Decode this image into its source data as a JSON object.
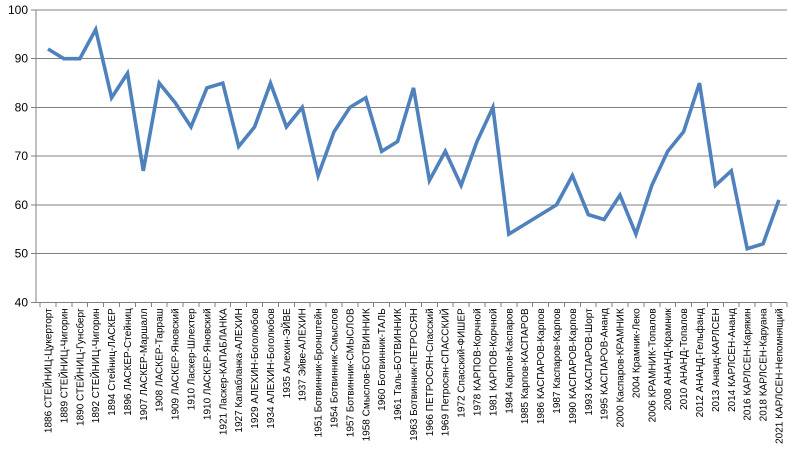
{
  "chart_data": {
    "type": "line",
    "title": "",
    "xlabel": "",
    "ylabel": "",
    "ylim": [
      40,
      100
    ],
    "yticks": [
      100,
      90,
      80,
      70,
      60,
      50,
      40
    ],
    "grid": true,
    "legend": false,
    "line_color": "#4F81BD",
    "grid_color": "#808080",
    "axis_color": "#808080",
    "background_color": "#FFFFFF",
    "categories": [
      "1886 СТЕЙНИЦ-Цукерторт",
      "1889 СТЕЙНИЦ-Чигорин",
      "1890 СТЕЙНИЦ-Гунсберг",
      "1892 СТЕЙНИЦ-Чигорин",
      "1894 Стейниц-ЛАСКЕР",
      "1896 ЛАСКЕР-Стейниц",
      "1907 ЛАСКЕР-Маршалл",
      "1908 ЛАСКЕР-Тарраш",
      "1909 ЛАСКЕР-Яновский",
      "1910 Ласкер-Шлехтер",
      "1910 ЛАСКЕР-Яновский",
      "1921 Ласкер-КАПАБЛАНКА",
      "1927 Капабланка-АЛЕХИН",
      "1929 АЛЕХИН-Боголюбов",
      "1934 АЛЕХИН-Боголюбов",
      "1935 Алехин-ЭЙВЕ",
      "1937 Эйве-АЛЕХИН",
      "1951 Ботвинник-Бронштейн",
      "1954 Ботвинник-Смыслов",
      "1957 Ботвинник-СМЫСЛОВ",
      "1958 Смыслов-БОТВИННИК",
      "1960 Ботвинник-ТАЛЬ",
      "1961 Таль-БОТВИННИК",
      "1963 Ботвинник-ПЕТРОСЯН",
      "1966 ПЕТРОСЯН-Спасский",
      "1969 Петросян-СПАССКИЙ",
      "1972 Спасский-ФИШЕР",
      "1978 КАРПОВ-Корчной",
      "1981 КАРПОВ-Корчной",
      "1984 Карпов-Каспаров",
      "1985 Карпов-КАСПАРОВ",
      "1986 КАСПАРОВ-Карпов",
      "1987 Каспаров-Карпов",
      "1990 КАСПАРОВ-Карпов",
      "1993 КАСПАРОВ-Шорт",
      "1995 КАСПАРОВ-Ананд",
      "2000 Каспаров-КРАМНИК",
      "2004 Крамник-Леко",
      "2006 КРАМНИК-Топалов",
      "2008 АНАНД-Крамник",
      "2010 АНАНД-Топалов",
      "2012 АНАНД-Гельфанд",
      "2013 Ананд-КАРЛСЕН",
      "2014 КАРЛСЕН-Ананд",
      "2016 КАРЛСЕН-Карякин",
      "2018 КАРЛСЕН-Каруана",
      "2021 КАРЛСЕН-Непомнящий"
    ],
    "series": [
      {
        "name": "",
        "values": [
          92,
          90,
          90,
          96,
          82,
          87,
          67,
          85,
          81,
          76,
          84,
          85,
          72,
          76,
          85,
          76,
          80,
          66,
          75,
          80,
          82,
          71,
          73,
          84,
          65,
          71,
          64,
          73,
          80,
          54,
          56,
          58,
          60,
          66,
          58,
          57,
          62,
          54,
          64,
          71,
          75,
          85,
          64,
          67,
          51,
          52,
          61
        ]
      }
    ]
  }
}
